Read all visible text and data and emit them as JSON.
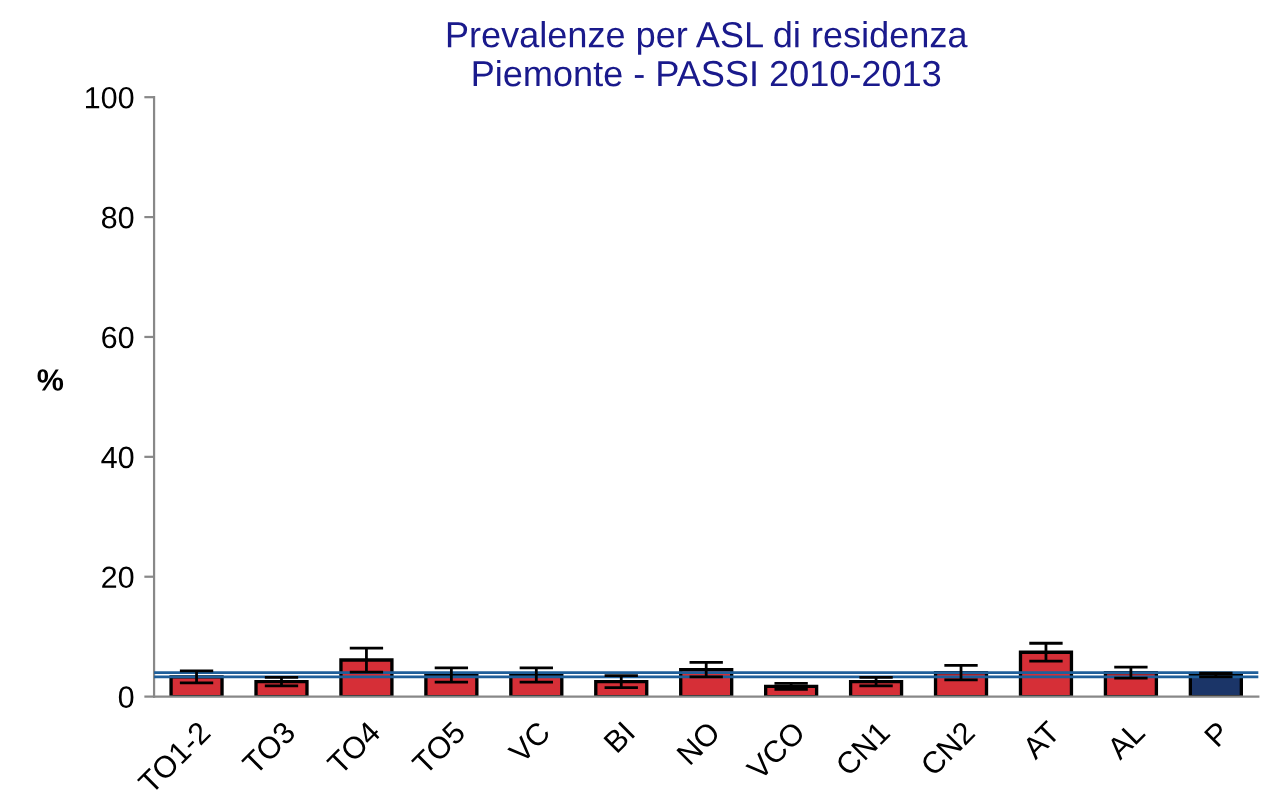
{
  "chart_data": {
    "type": "bar",
    "title": "Prevalenze per ASL di residenza\nPiemonte - PASSI 2010-2013",
    "ylabel": "%",
    "categories": [
      "TO1-2",
      "TO3",
      "TO4",
      "TO5",
      "VC",
      "BI",
      "NO",
      "VCO",
      "CN1",
      "CN2",
      "AT",
      "AL",
      "P"
    ],
    "values": [
      3.3,
      2.5,
      6.1,
      3.6,
      3.6,
      2.5,
      4.5,
      1.7,
      2.5,
      4.0,
      7.4,
      4.0,
      3.6
    ],
    "errors": [
      1.0,
      0.7,
      2.0,
      1.2,
      1.2,
      1.0,
      1.2,
      0.5,
      0.7,
      1.2,
      1.5,
      0.9,
      0.3
    ],
    "colors": [
      "#d62f37",
      "#d62f37",
      "#d62f37",
      "#d62f37",
      "#d62f37",
      "#d62f37",
      "#d62f37",
      "#d62f37",
      "#d62f37",
      "#d62f37",
      "#d62f37",
      "#d62f37",
      "#1b3568"
    ],
    "ylim": [
      0,
      100
    ],
    "yticks": [
      0,
      20,
      40,
      60,
      80,
      100
    ],
    "ref_lines": [
      {
        "axis": "y",
        "value": 3.3,
        "color": "#1f5f9a"
      },
      {
        "axis": "y",
        "value": 4.0,
        "color": "#1f5f9a"
      }
    ],
    "grid": false,
    "legend": false
  }
}
